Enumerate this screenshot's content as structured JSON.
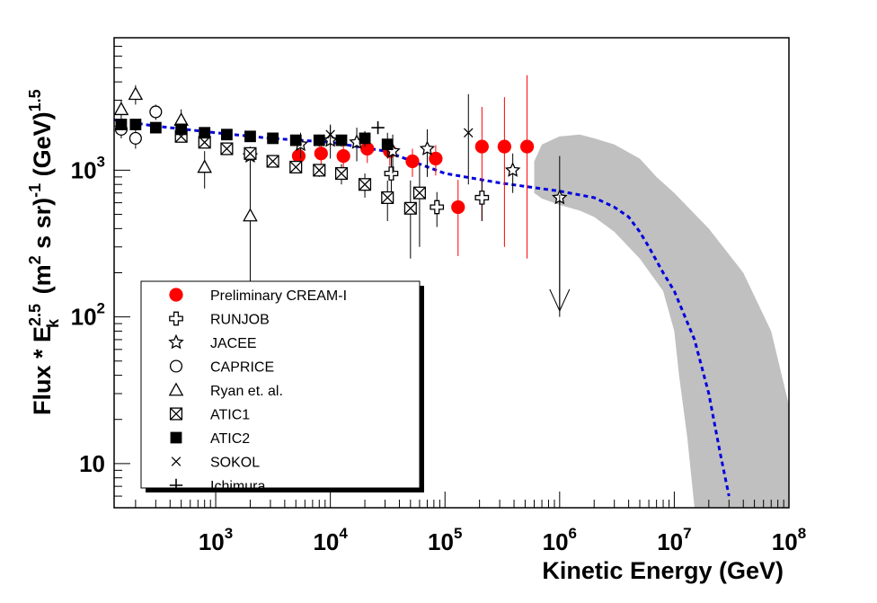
{
  "chart_data": {
    "type": "scatter",
    "title": "",
    "xlabel": "Kinetic Energy (GeV)",
    "ylabel": {
      "prefix": "Flux * E",
      "sup1": "2.5",
      "sub1": "k",
      "mid": " (m",
      "sup2": "2",
      "mid2": " s sr)",
      "sup3": "-1",
      "mid3": " (GeV)",
      "sup4": "1.5"
    },
    "xscale": "log",
    "yscale": "log",
    "xlim": [
      130,
      100000000
    ],
    "ylim": [
      5,
      8000
    ],
    "x_ticks": [
      {
        "value": 1000,
        "base": "10",
        "exp": "3"
      },
      {
        "value": 10000,
        "base": "10",
        "exp": "4"
      },
      {
        "value": 100000,
        "base": "10",
        "exp": "5"
      },
      {
        "value": 1000000,
        "base": "10",
        "exp": "6"
      },
      {
        "value": 10000000,
        "base": "10",
        "exp": "7"
      },
      {
        "value": 100000000,
        "base": "10",
        "exp": "8"
      }
    ],
    "y_ticks": [
      {
        "value": 10,
        "label": "10",
        "base": "",
        "exp": ""
      },
      {
        "value": 100,
        "label": "",
        "base": "10",
        "exp": "2"
      },
      {
        "value": 1000,
        "label": "",
        "base": "10",
        "exp": "3"
      }
    ],
    "legend_position": "bottom-left",
    "series": [
      {
        "name": "Preliminary CREAM-I",
        "marker": "filled-circle",
        "color": "#ff0000",
        "points": [
          [
            5300,
            1250,
            250,
            250
          ],
          [
            8300,
            1300,
            250,
            250
          ],
          [
            13000,
            1250,
            250,
            250
          ],
          [
            21000,
            1400,
            280,
            280
          ],
          [
            33000,
            1350,
            280,
            280
          ],
          [
            52000,
            1150,
            250,
            250
          ],
          [
            83000,
            1200,
            280,
            280
          ],
          [
            130000,
            560,
            300,
            300
          ],
          [
            210000,
            1450,
            1250,
            1000
          ],
          [
            330000,
            1450,
            1700,
            1150
          ],
          [
            520000,
            1450,
            3000,
            1200
          ]
        ]
      },
      {
        "name": "RUNJOB",
        "marker": "open-cross",
        "color": "#000000",
        "points": [
          [
            34000,
            950,
            300,
            300
          ],
          [
            85000,
            560,
            150,
            150
          ],
          [
            210000,
            650,
            200,
            200
          ]
        ]
      },
      {
        "name": "JACEE",
        "marker": "open-star",
        "color": "#000000",
        "points": [
          [
            2000,
            1250,
            200,
            200
          ],
          [
            5500,
            1500,
            300,
            300
          ],
          [
            10000,
            1600,
            400,
            400
          ],
          [
            17000,
            1550,
            400,
            400
          ],
          [
            35000,
            1350,
            400,
            400
          ],
          [
            70000,
            1400,
            500,
            500
          ],
          [
            390000,
            1000,
            300,
            300
          ],
          [
            1000000,
            650,
            600,
            550
          ]
        ]
      },
      {
        "name": "CAPRICE",
        "marker": "open-circle",
        "color": "#000000",
        "points": [
          [
            150,
            1900,
            250,
            250
          ],
          [
            200,
            1650,
            250,
            250
          ],
          [
            300,
            2500,
            300,
            300
          ]
        ]
      },
      {
        "name": "Ryan et. al.",
        "marker": "open-triangle",
        "color": "#000000",
        "points": [
          [
            150,
            2600,
            400,
            400
          ],
          [
            200,
            3300,
            500,
            500
          ],
          [
            500,
            2200,
            400,
            400
          ],
          [
            800,
            1050,
            300,
            300
          ],
          [
            2000,
            490,
            600,
            450
          ]
        ]
      },
      {
        "name": "ATIC1",
        "marker": "open-box-x",
        "color": "#000000",
        "points": [
          [
            500,
            1700,
            100,
            100
          ],
          [
            800,
            1550,
            100,
            100
          ],
          [
            1250,
            1400,
            100,
            100
          ],
          [
            2000,
            1300,
            100,
            100
          ],
          [
            3150,
            1150,
            100,
            100
          ],
          [
            5000,
            1050,
            100,
            100
          ],
          [
            8000,
            1000,
            100,
            100
          ],
          [
            12500,
            950,
            150,
            150
          ],
          [
            20000,
            800,
            150,
            150
          ],
          [
            31500,
            650,
            200,
            200
          ],
          [
            50000,
            550,
            300,
            300
          ],
          [
            60000,
            700,
            400,
            400
          ]
        ]
      },
      {
        "name": "ATIC2",
        "marker": "filled-box",
        "color": "#000000",
        "points": [
          [
            150,
            2050,
            100,
            100
          ],
          [
            200,
            2050,
            100,
            100
          ],
          [
            300,
            1950,
            100,
            100
          ],
          [
            500,
            1900,
            100,
            100
          ],
          [
            800,
            1800,
            100,
            100
          ],
          [
            1250,
            1750,
            100,
            100
          ],
          [
            2000,
            1700,
            100,
            100
          ],
          [
            3150,
            1650,
            100,
            100
          ],
          [
            5000,
            1600,
            100,
            100
          ],
          [
            8000,
            1600,
            150,
            150
          ],
          [
            12500,
            1600,
            150,
            150
          ],
          [
            20000,
            1650,
            200,
            200
          ],
          [
            31500,
            1500,
            300,
            300
          ]
        ]
      },
      {
        "name": "SOKOL",
        "marker": "x-mark",
        "color": "#000000",
        "points": [
          [
            10000,
            1750,
            300,
            300
          ],
          [
            160000,
            1800,
            1500,
            1000
          ]
        ]
      },
      {
        "name": "Ichimura",
        "marker": "plus",
        "color": "#000000",
        "points": [
          [
            26000,
            1950,
            0,
            0
          ]
        ]
      }
    ],
    "upper_limit": {
      "x": 1000000,
      "from": 680,
      "to": 110
    },
    "model_curve": {
      "name": "model",
      "color": "#0000dd",
      "points": [
        [
          130,
          2200
        ],
        [
          300,
          2000
        ],
        [
          1000,
          1800
        ],
        [
          3000,
          1650
        ],
        [
          10000,
          1550
        ],
        [
          30000,
          1350
        ],
        [
          100000,
          950
        ],
        [
          300000,
          820
        ],
        [
          1000000,
          720
        ],
        [
          2000000,
          650
        ],
        [
          3000000,
          560
        ],
        [
          4000000,
          480
        ],
        [
          5000000,
          380
        ],
        [
          6000000,
          300
        ],
        [
          8000000,
          200
        ],
        [
          10000000,
          150
        ],
        [
          15000000,
          70
        ],
        [
          20000000,
          30
        ],
        [
          25000000,
          12
        ],
        [
          30000000,
          6
        ]
      ]
    },
    "uncertainty_band": {
      "color": "#c0c0c0",
      "upper": [
        [
          600000,
          1150
        ],
        [
          700000,
          1500
        ],
        [
          1000000,
          1700
        ],
        [
          1500000,
          1750
        ],
        [
          2000000,
          1650
        ],
        [
          3000000,
          1500
        ],
        [
          5000000,
          1200
        ],
        [
          7000000,
          900
        ],
        [
          10000000,
          700
        ],
        [
          20000000,
          400
        ],
        [
          40000000,
          200
        ],
        [
          70000000,
          80
        ],
        [
          100000000,
          25
        ]
      ],
      "lower": [
        [
          100000000,
          5
        ],
        [
          20000000,
          5
        ],
        [
          15000000,
          5
        ],
        [
          13000000,
          15
        ],
        [
          11000000,
          40
        ],
        [
          10000000,
          80
        ],
        [
          8000000,
          150
        ],
        [
          5000000,
          250
        ],
        [
          3000000,
          380
        ],
        [
          2000000,
          480
        ],
        [
          1500000,
          530
        ],
        [
          1000000,
          580
        ],
        [
          700000,
          640
        ],
        [
          600000,
          700
        ]
      ]
    }
  }
}
